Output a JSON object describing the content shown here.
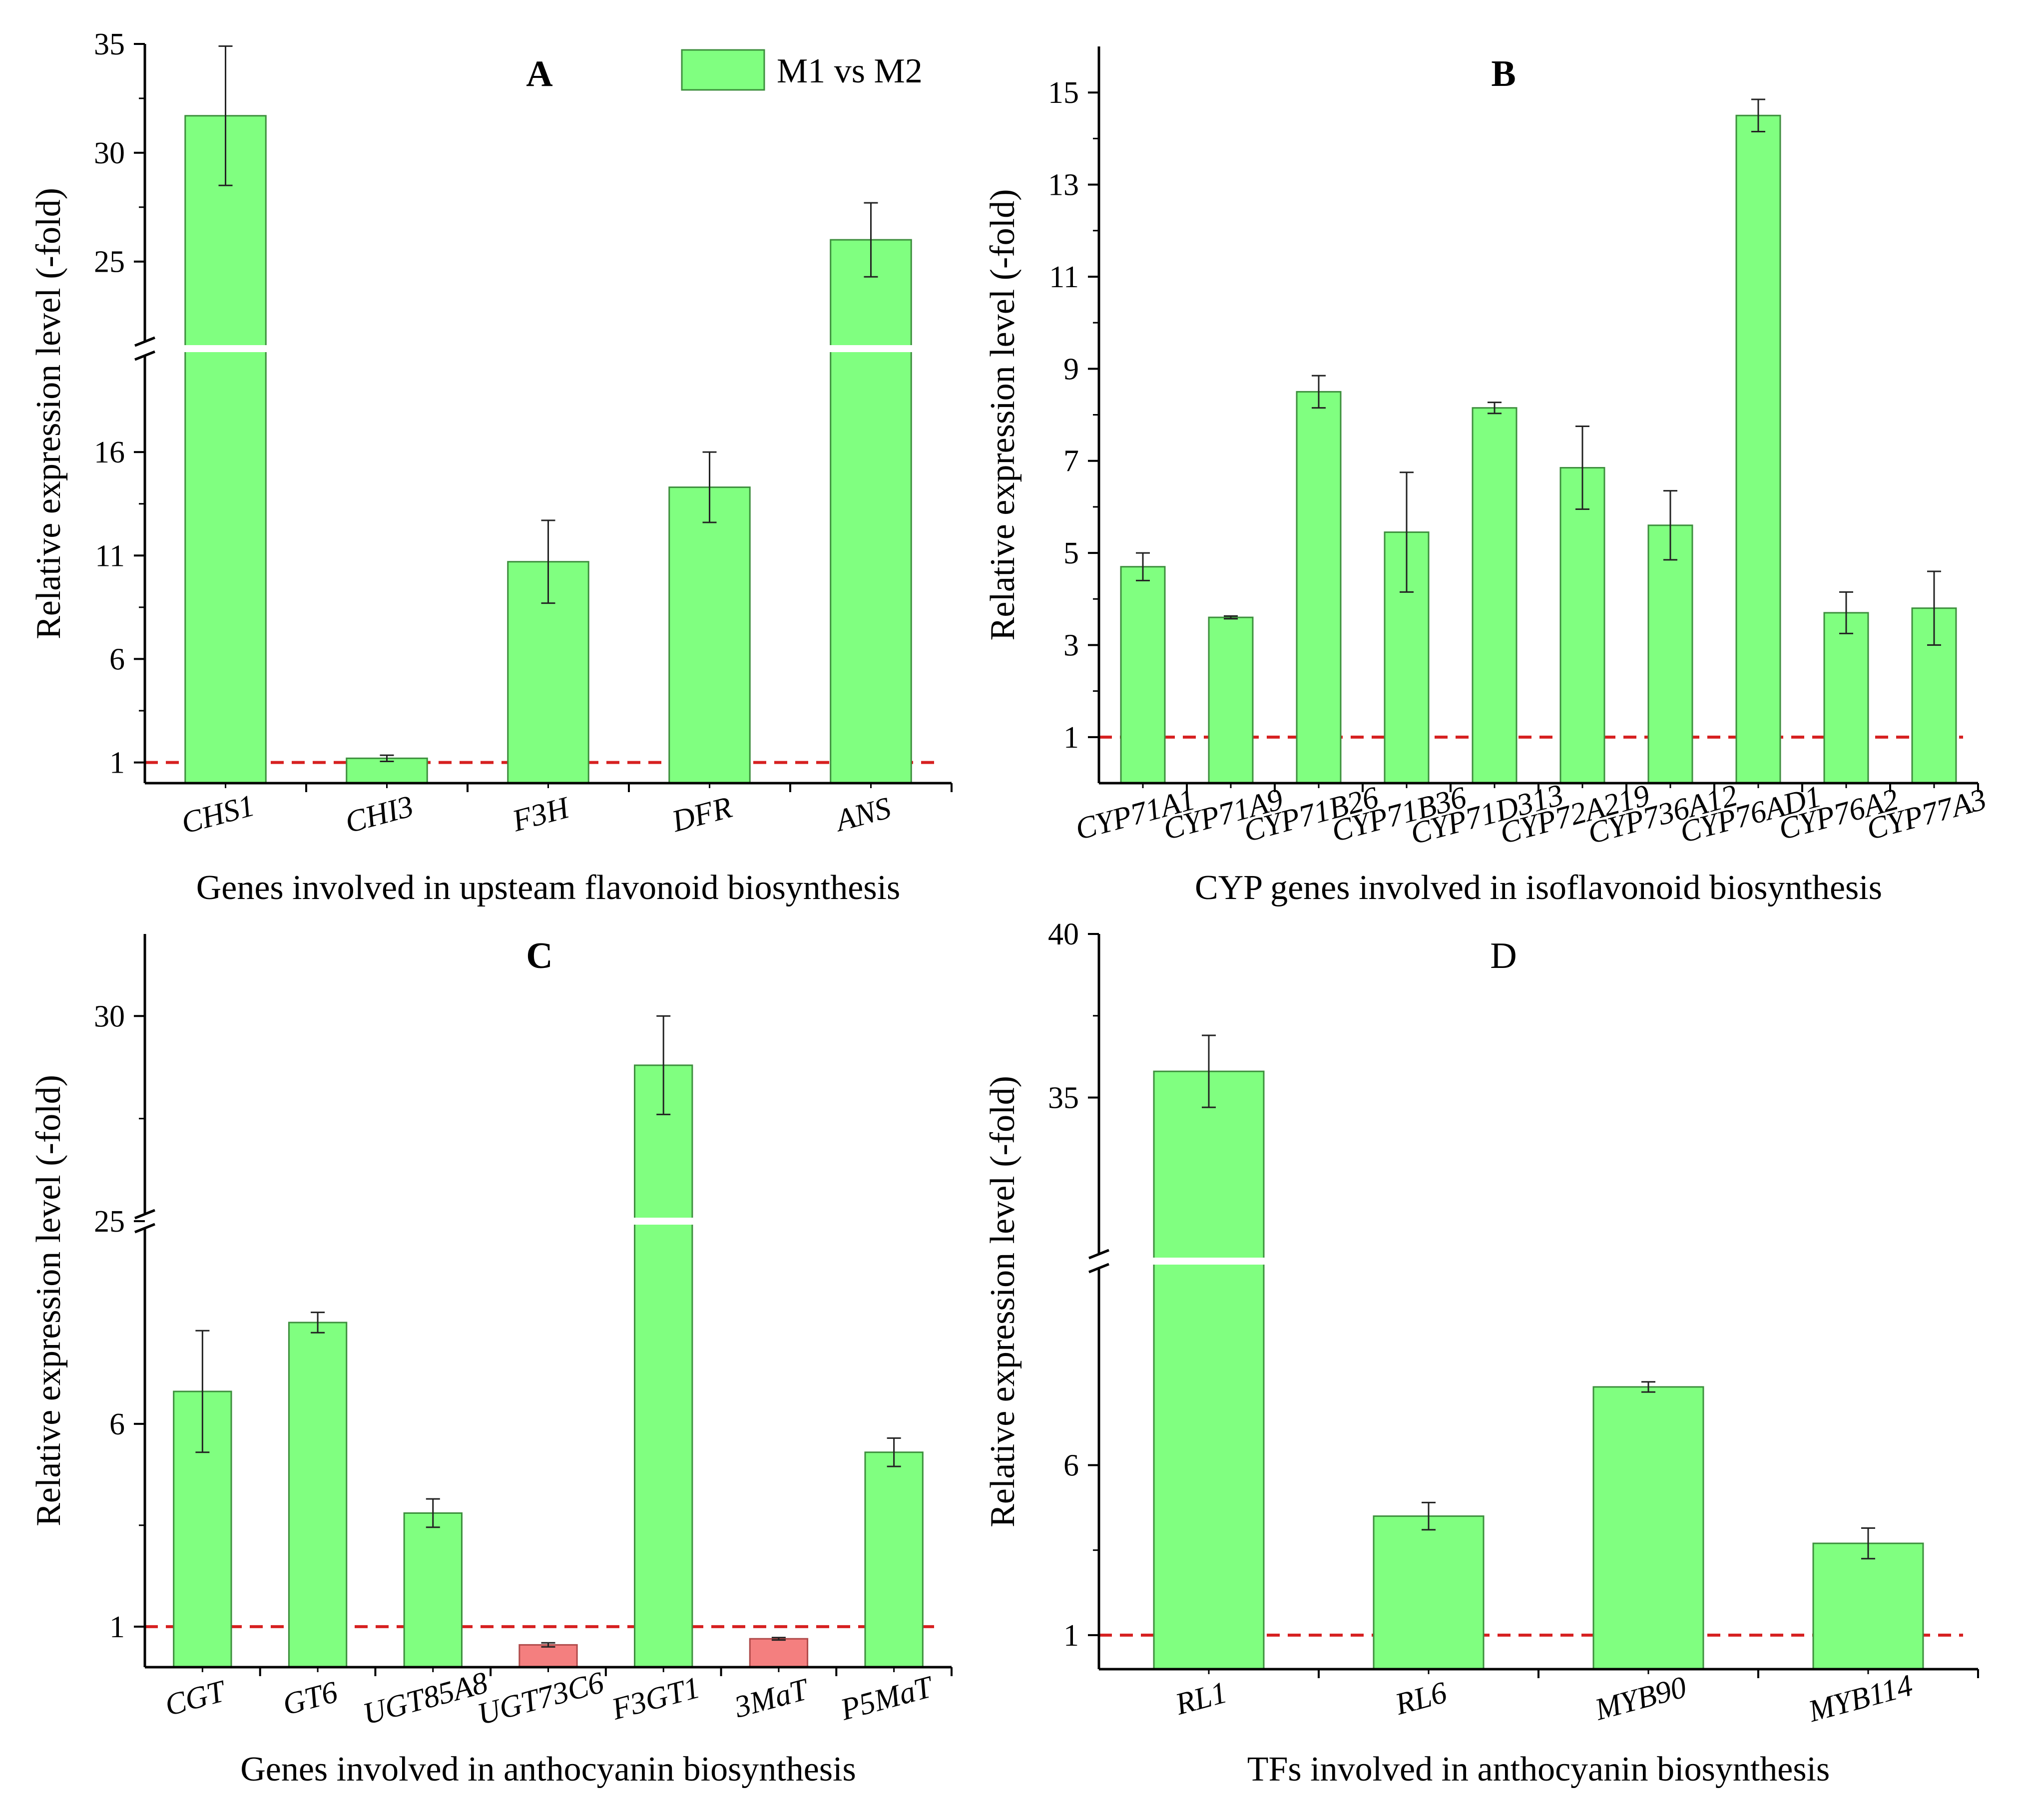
{
  "legend": {
    "label": "M1 vs M2",
    "color": "#80ff80"
  },
  "colors": {
    "up": "#80ff80",
    "down": "#f47f7f",
    "edge": "#3d8f3d",
    "edge_down": "#b04a4a",
    "reference": "#d62020",
    "axis": "#000000"
  },
  "chart_data": [
    {
      "panel": "A",
      "panel_bold": true,
      "type": "bar",
      "title": "A",
      "xlabel": "Genes involved in upsteam flavonoid biosynthesis",
      "ylabel": "Relative expression level (-fold)",
      "categories": [
        "CHS1",
        "CHI3",
        "F3H",
        "DFR",
        "ANS"
      ],
      "values": [
        31.7,
        1.2,
        10.7,
        14.3,
        26.0
      ],
      "errors": [
        3.2,
        0.15,
        2.0,
        1.7,
        1.7
      ],
      "colors": [
        "up",
        "up",
        "up",
        "up",
        "up"
      ],
      "segments": [
        {
          "range": [
            0,
            21
          ]
        },
        {
          "range": [
            21,
            35
          ]
        }
      ],
      "yticks": [
        1,
        6,
        11,
        16,
        25,
        30,
        35
      ],
      "reference_line": 1,
      "legend": true
    },
    {
      "panel": "B",
      "panel_bold": true,
      "type": "bar",
      "title": "B",
      "xlabel": "CYP genes involved in isoflavonoid biosynthesis",
      "ylabel": "Relative expression level (-fold)",
      "categories": [
        "CYP71A1",
        "CYP71A9",
        "CYP71B26",
        "CYP71B36",
        "CYP71D313",
        "CYP72A219",
        "CYP736A12",
        "CYP76AD1",
        "CYP76A2",
        "CYP77A3"
      ],
      "values": [
        4.7,
        3.6,
        8.5,
        5.45,
        8.15,
        6.85,
        5.6,
        14.5,
        3.7,
        3.8
      ],
      "errors": [
        0.3,
        0.03,
        0.35,
        1.3,
        0.12,
        0.9,
        0.75,
        0.35,
        0.45,
        0.8
      ],
      "colors": [
        "up",
        "up",
        "up",
        "up",
        "up",
        "up",
        "up",
        "up",
        "up",
        "up"
      ],
      "segments": [
        {
          "range": [
            0,
            16
          ]
        }
      ],
      "yticks": [
        1,
        3,
        5,
        7,
        9,
        11,
        13,
        15
      ],
      "reference_line": 1,
      "legend": false
    },
    {
      "panel": "C",
      "panel_bold": true,
      "type": "bar",
      "title": "C",
      "xlabel": "Genes involved in anthocyanin biosynthesis",
      "ylabel": "Relative expression level (-fold)",
      "categories": [
        "CGT",
        "GT6",
        "UGT85A8",
        "UGT73C6",
        "F3GT1",
        "3MaT",
        "P5MaT"
      ],
      "values": [
        6.8,
        8.5,
        3.8,
        0.55,
        28.8,
        0.7,
        5.3
      ],
      "errors": [
        1.5,
        0.25,
        0.35,
        0.05,
        1.2,
        0.03,
        0.35
      ],
      "colors": [
        "up",
        "up",
        "up",
        "down",
        "up",
        "down",
        "up"
      ],
      "segments": [
        {
          "range": [
            0,
            11
          ]
        },
        {
          "range": [
            25,
            32
          ]
        }
      ],
      "yticks": [
        1,
        6,
        25,
        30
      ],
      "reference_line": 1,
      "legend": false
    },
    {
      "panel": "D",
      "panel_bold": false,
      "type": "bar",
      "title": "D",
      "xlabel": "TFs involved in anthocyanin biosynthesis",
      "ylabel": "Relative expression level (-fold)",
      "categories": [
        "RL1",
        "RL6",
        "MYB90",
        "MYB114"
      ],
      "values": [
        35.8,
        4.5,
        8.3,
        3.7
      ],
      "errors": [
        1.1,
        0.4,
        0.15,
        0.45
      ],
      "colors": [
        "up",
        "up",
        "up",
        "up"
      ],
      "segments": [
        {
          "range": [
            0,
            12
          ]
        },
        {
          "range": [
            30,
            40
          ]
        }
      ],
      "yticks": [
        1,
        6,
        35,
        40
      ],
      "reference_line": 1,
      "legend": false
    }
  ]
}
